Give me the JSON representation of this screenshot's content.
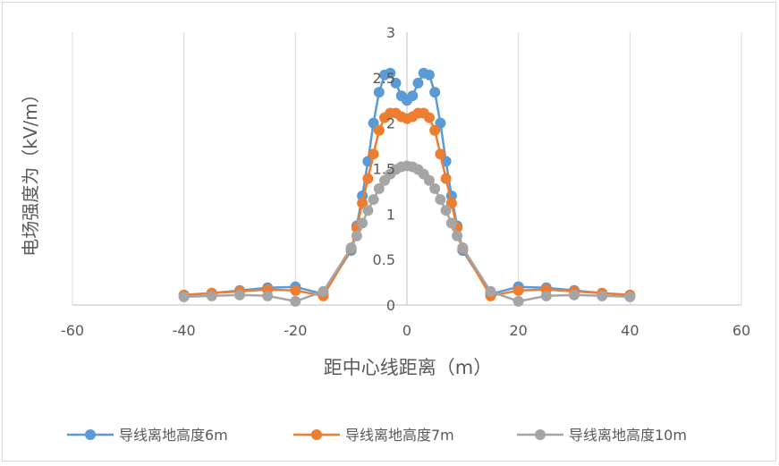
{
  "chart_data": {
    "type": "line",
    "title": "",
    "xlabel": "距中心线距离（m）",
    "ylabel": "电场强度为（kV/m）",
    "xlim": [
      -60,
      60
    ],
    "ylim": [
      0,
      3
    ],
    "x_ticks": [
      "-60",
      "-40",
      "-20",
      "0",
      "20",
      "40",
      "60"
    ],
    "y_ticks": [
      "0",
      "0.5",
      "1",
      "1.5",
      "2",
      "2.5",
      "3"
    ],
    "grid": "vertical-major",
    "legend_position": "bottom",
    "series": [
      {
        "name": "导线离地高度6m",
        "color": "#5B9BD5",
        "x": [
          -40,
          -35,
          -30,
          -25,
          -20,
          -15,
          -10,
          -9,
          -8,
          -7,
          -6,
          -5,
          -4,
          -3,
          -2,
          -1,
          0,
          1,
          2,
          3,
          4,
          5,
          6,
          7,
          8,
          9,
          10,
          15,
          20,
          25,
          30,
          35,
          40
        ],
        "y": [
          0.11,
          0.13,
          0.16,
          0.19,
          0.2,
          0.12,
          0.6,
          0.87,
          1.2,
          1.58,
          2.0,
          2.34,
          2.53,
          2.55,
          2.44,
          2.3,
          2.25,
          2.3,
          2.44,
          2.55,
          2.53,
          2.34,
          2.0,
          1.58,
          1.2,
          0.87,
          0.6,
          0.12,
          0.2,
          0.19,
          0.16,
          0.13,
          0.11
        ]
      },
      {
        "name": "导线离地高度7m",
        "color": "#ED7D31",
        "x": [
          -40,
          -35,
          -30,
          -25,
          -20,
          -15,
          -10,
          -9,
          -8,
          -7,
          -6,
          -5,
          -4,
          -3,
          -2,
          -1,
          0,
          1,
          2,
          3,
          4,
          5,
          6,
          7,
          8,
          9,
          10,
          15,
          20,
          25,
          30,
          35,
          40
        ],
        "y": [
          0.11,
          0.13,
          0.15,
          0.17,
          0.16,
          0.1,
          0.62,
          0.85,
          1.12,
          1.39,
          1.66,
          1.92,
          2.06,
          2.11,
          2.11,
          2.07,
          2.05,
          2.07,
          2.11,
          2.11,
          2.06,
          1.92,
          1.66,
          1.39,
          1.12,
          0.85,
          0.62,
          0.1,
          0.16,
          0.17,
          0.15,
          0.13,
          0.11
        ]
      },
      {
        "name": "导线离地高度10m",
        "color": "#A5A5A5",
        "x": [
          -40,
          -35,
          -30,
          -25,
          -20,
          -15,
          -10,
          -9,
          -8,
          -7,
          -6,
          -5,
          -4,
          -3,
          -2,
          -1,
          0,
          1,
          2,
          3,
          4,
          5,
          6,
          7,
          8,
          9,
          10,
          15,
          20,
          25,
          30,
          35,
          40
        ],
        "y": [
          0.09,
          0.1,
          0.11,
          0.1,
          0.04,
          0.15,
          0.63,
          0.76,
          0.9,
          1.04,
          1.16,
          1.28,
          1.37,
          1.44,
          1.49,
          1.52,
          1.53,
          1.52,
          1.49,
          1.44,
          1.37,
          1.28,
          1.16,
          1.04,
          0.9,
          0.76,
          0.63,
          0.15,
          0.04,
          0.1,
          0.11,
          0.1,
          0.09
        ]
      }
    ]
  }
}
